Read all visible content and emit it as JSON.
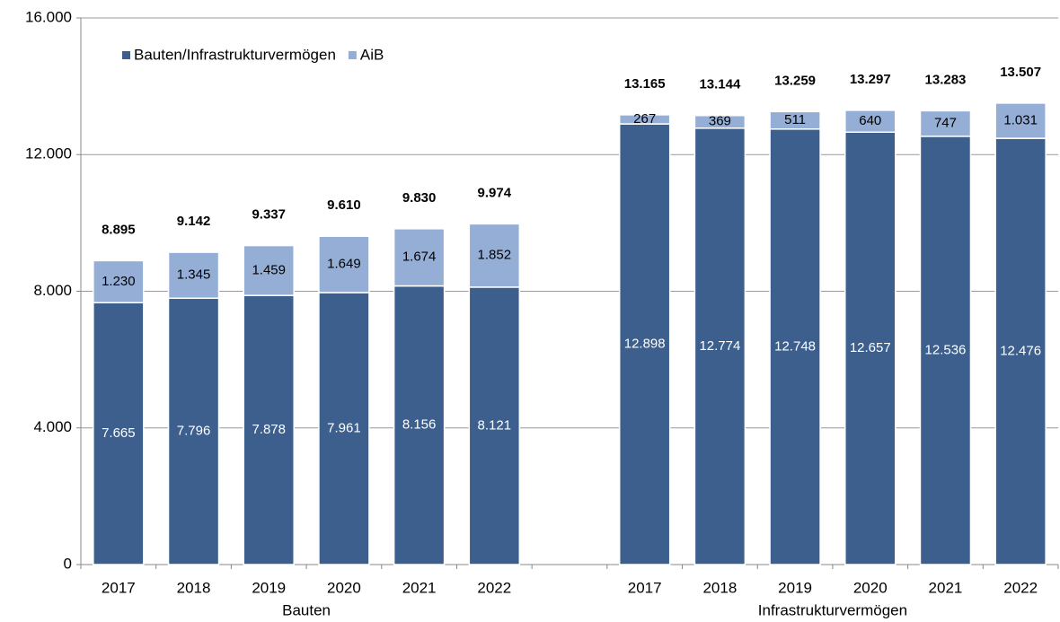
{
  "chart_data": {
    "type": "stacked_bar",
    "categories": [
      "2017",
      "2018",
      "2019",
      "2020",
      "2021",
      "2022",
      null,
      "2017",
      "2018",
      "2019",
      "2020",
      "2021",
      "2022"
    ],
    "group_labels": [
      "Bauten",
      "Infrastrukturvermögen"
    ],
    "series": [
      {
        "name": "Bauten/Infrastrukturvermögen",
        "color": "#3c5f8d",
        "label_color": "#ffffff",
        "values": [
          7665,
          7796,
          7878,
          7961,
          8156,
          8121,
          null,
          12898,
          12774,
          12748,
          12657,
          12536,
          12476
        ],
        "value_labels": [
          "7.665",
          "7.796",
          "7.878",
          "7.961",
          "8.156",
          "8.121",
          null,
          "12.898",
          "12.774",
          "12.748",
          "12.657",
          "12.536",
          "12.476"
        ]
      },
      {
        "name": "AiB",
        "color": "#95aed6",
        "label_color": "#000000",
        "values": [
          1230,
          1345,
          1459,
          1649,
          1674,
          1852,
          null,
          267,
          369,
          511,
          640,
          747,
          1031
        ],
        "value_labels": [
          "1.230",
          "1.345",
          "1.459",
          "1.649",
          "1.674",
          "1.852",
          null,
          "267",
          "369",
          "511",
          "640",
          "747",
          "1.031"
        ]
      }
    ],
    "totals": {
      "values": [
        8895,
        9142,
        9337,
        9610,
        9830,
        9974,
        null,
        13165,
        13144,
        13259,
        13297,
        13283,
        13507
      ],
      "value_labels": [
        "8.895",
        "9.142",
        "9.337",
        "9.610",
        "9.830",
        "9.974",
        null,
        "13.165",
        "13.144",
        "13.259",
        "13.297",
        "13.283",
        "13.507"
      ]
    },
    "ylim": [
      0,
      16000
    ],
    "yticks": [
      0,
      {
        "value": 4000,
        "label": "4.000"
      },
      {
        "value": 8000,
        "label": "8.000"
      },
      {
        "value": 12000,
        "label": "12.000"
      },
      {
        "value": 16000,
        "label": "16.000"
      }
    ],
    "grid": true,
    "legend": "top-left"
  }
}
